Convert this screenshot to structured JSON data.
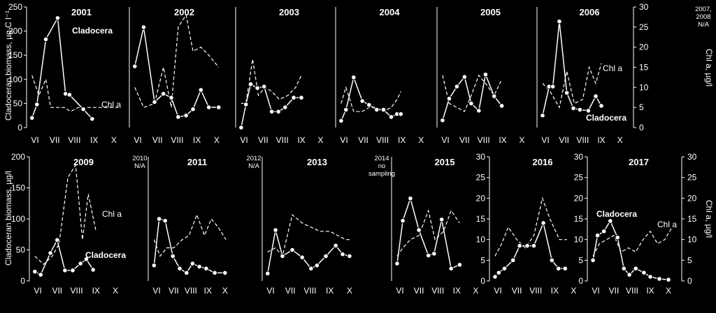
{
  "figure": {
    "background": "#000000",
    "ink": "#ffffff",
    "top_left_ylabel": "Cladoceran biomass, µg C l⁻¹",
    "bottom_left_ylabel": "Cladoceran biomass, µg/l",
    "right_ylabel": "Chl a, µg/l",
    "months": [
      "VI",
      "VII",
      "VIII",
      "IX",
      "X"
    ]
  },
  "chart_data": [
    {
      "type": "line",
      "title": "2001",
      "row": 0,
      "ylim": [
        0,
        250
      ],
      "chl_ylim": [
        0,
        30
      ],
      "series": [
        {
          "name": "Cladocera",
          "x": [
            5.85,
            6.1,
            6.55,
            7.15,
            7.55,
            7.75,
            8.45,
            8.9
          ],
          "y": [
            20,
            48,
            183,
            227,
            70,
            68,
            38,
            18
          ]
        },
        {
          "name": "Chl a",
          "x": [
            5.85,
            6.2,
            6.55,
            6.8,
            7.15,
            7.5,
            7.8,
            8.2,
            8.6,
            9.0,
            9.5,
            10.0,
            10.2
          ],
          "y": [
            13,
            8,
            12,
            5,
            5,
            5,
            4,
            5,
            5,
            5,
            5,
            5,
            5
          ]
        }
      ],
      "annotations": [
        {
          "text": "Cladocera"
        },
        {
          "text": "Chl a"
        }
      ]
    },
    {
      "type": "line",
      "title": "2002",
      "row": 0,
      "ylim": [
        0,
        250
      ],
      "chl_ylim": [
        0,
        30
      ],
      "series": [
        {
          "name": "Cladocera",
          "x": [
            5.85,
            6.3,
            6.85,
            7.3,
            7.7,
            8.05,
            8.45,
            8.8,
            9.2,
            9.6,
            10.1
          ],
          "y": [
            127,
            208,
            53,
            70,
            62,
            22,
            25,
            38,
            78,
            42,
            42
          ]
        },
        {
          "name": "Chl a",
          "x": [
            5.85,
            6.3,
            6.85,
            7.3,
            7.7,
            8.05,
            8.45,
            8.8,
            9.2,
            9.6,
            10.1
          ],
          "y": [
            10,
            5,
            6,
            15,
            5,
            25,
            28,
            19,
            20,
            18,
            15
          ]
        }
      ]
    },
    {
      "type": "line",
      "title": "2003",
      "row": 0,
      "ylim": [
        0,
        250
      ],
      "chl_ylim": [
        0,
        30
      ],
      "series": [
        {
          "name": "Cladocera",
          "x": [
            5.85,
            6.1,
            6.35,
            6.7,
            7.05,
            7.45,
            7.8,
            8.15,
            8.6,
            9.0
          ],
          "y": [
            0,
            48,
            90,
            82,
            85,
            33,
            33,
            42,
            62,
            62
          ]
        },
        {
          "name": "Chl a",
          "x": [
            5.85,
            6.1,
            6.45,
            6.75,
            7.1,
            7.45,
            7.85,
            8.3,
            8.7,
            9.0
          ],
          "y": [
            6,
            6,
            17,
            8,
            10,
            9,
            7,
            8,
            10,
            13
          ]
        }
      ]
    },
    {
      "type": "line",
      "title": "2004",
      "row": 0,
      "ylim": [
        0,
        250
      ],
      "chl_ylim": [
        0,
        30
      ],
      "series": [
        {
          "name": "Cladocera",
          "x": [
            5.85,
            6.1,
            6.5,
            6.95,
            7.3,
            7.7,
            8.05,
            8.45,
            8.75,
            8.95
          ],
          "y": [
            14,
            37,
            104,
            55,
            47,
            37,
            37,
            22,
            28,
            28
          ]
        },
        {
          "name": "Chl a",
          "x": [
            5.85,
            6.1,
            6.5,
            6.95,
            7.3,
            7.7,
            8.05,
            8.45,
            8.75,
            8.95
          ],
          "y": [
            6,
            10,
            4,
            4,
            5,
            5,
            4,
            5,
            7,
            9
          ]
        }
      ]
    },
    {
      "type": "line",
      "title": "2005",
      "row": 0,
      "ylim": [
        0,
        250
      ],
      "chl_ylim": [
        0,
        30
      ],
      "series": [
        {
          "name": "Cladocera",
          "x": [
            5.85,
            6.2,
            6.6,
            7.0,
            7.35,
            7.75,
            8.1,
            8.55,
            8.95
          ],
          "y": [
            15,
            60,
            85,
            105,
            50,
            35,
            110,
            65,
            45
          ]
        },
        {
          "name": "Chl a",
          "x": [
            5.85,
            6.2,
            6.6,
            7.0,
            7.35,
            7.75,
            8.1,
            8.55,
            8.95
          ],
          "y": [
            13,
            6,
            5,
            4,
            8,
            13,
            11,
            8,
            12
          ]
        }
      ]
    },
    {
      "type": "line",
      "title": "2006",
      "row": 0,
      "ylim": [
        0,
        250
      ],
      "chl_ylim": [
        0,
        30
      ],
      "series": [
        {
          "name": "Cladocera",
          "x": [
            5.85,
            6.2,
            6.4,
            6.75,
            7.15,
            7.5,
            7.85,
            8.3,
            8.7,
            9.0
          ],
          "y": [
            25,
            85,
            85,
            220,
            72,
            40,
            37,
            35,
            65,
            45
          ]
        },
        {
          "name": "Chl a",
          "x": [
            5.85,
            6.25,
            6.75,
            7.15,
            7.55,
            8.0,
            8.35,
            8.7,
            9.0
          ],
          "y": [
            11,
            9,
            5,
            14,
            6,
            7,
            15,
            11,
            16
          ]
        }
      ],
      "annotations": [
        {
          "text": "Chl a"
        },
        {
          "text": "Cladocera"
        }
      ]
    },
    {
      "type": "line",
      "title": "2009",
      "row": 1,
      "ylim": [
        0,
        200
      ],
      "chl_ylim": [
        0,
        30
      ],
      "series": [
        {
          "name": "Cladocera",
          "x": [
            5.85,
            6.15,
            6.65,
            7.0,
            7.4,
            7.8,
            8.2,
            8.5,
            8.85
          ],
          "y": [
            15,
            10,
            45,
            66,
            17,
            17,
            28,
            35,
            18
          ]
        },
        {
          "name": "Chl a",
          "x": [
            5.85,
            6.3,
            6.75,
            7.1,
            7.55,
            7.95,
            8.3,
            8.6,
            9.0
          ],
          "y": [
            6,
            4,
            6,
            9,
            25,
            28,
            10,
            21,
            12
          ]
        }
      ],
      "annotations": [
        {
          "text": "Chl a"
        },
        {
          "text": "Cladocera"
        }
      ]
    },
    {
      "type": "line",
      "title": "2011",
      "row": 1,
      "ylim": [
        0,
        200
      ],
      "chl_ylim": [
        0,
        30
      ],
      "series": [
        {
          "name": "Cladocera",
          "x": [
            5.85,
            6.15,
            6.5,
            6.95,
            7.35,
            7.75,
            8.1,
            8.5,
            8.9,
            9.4,
            10.0
          ],
          "y": [
            25,
            100,
            97,
            40,
            20,
            13,
            28,
            23,
            20,
            13,
            13
          ]
        },
        {
          "name": "Chl a",
          "x": [
            5.85,
            6.2,
            6.6,
            7.0,
            7.5,
            7.9,
            8.35,
            8.8,
            9.2,
            9.6,
            10.05
          ],
          "y": [
            10,
            6,
            8,
            8,
            10,
            11,
            16,
            11,
            15,
            13,
            10
          ]
        }
      ]
    },
    {
      "type": "line",
      "title": "2013",
      "row": 1,
      "ylim": [
        0,
        200
      ],
      "chl_ylim": [
        0,
        30
      ],
      "series": [
        {
          "name": "Cladocera",
          "x": [
            5.85,
            6.25,
            6.6,
            7.1,
            7.6,
            8.05,
            8.35,
            8.8,
            9.3,
            9.65,
            10.0
          ],
          "y": [
            12,
            82,
            40,
            50,
            38,
            20,
            25,
            40,
            57,
            43,
            40
          ]
        },
        {
          "name": "Chl a",
          "x": [
            5.85,
            6.25,
            6.6,
            7.1,
            7.6,
            8.05,
            8.5,
            9.0,
            9.4,
            9.8,
            10.0
          ],
          "y": [
            7,
            8,
            6,
            16,
            14,
            13,
            12,
            12,
            11,
            10,
            10
          ]
        }
      ]
    },
    {
      "type": "line",
      "title": "2015",
      "row": 1,
      "ylim": [
        0,
        200
      ],
      "chl_ylim": [
        0,
        30
      ],
      "series": [
        {
          "name": "Cladocera",
          "x": [
            5.85,
            6.15,
            6.55,
            7.0,
            7.5,
            7.8,
            8.2,
            8.7,
            9.15
          ],
          "y": [
            28,
            97,
            133,
            82,
            41,
            44,
            99,
            20,
            26
          ]
        },
        {
          "name": "Chl a",
          "x": [
            5.85,
            6.15,
            6.55,
            7.0,
            7.5,
            7.85,
            8.3,
            8.7,
            9.15
          ],
          "y": [
            6,
            8,
            10,
            11,
            17,
            10,
            12,
            17,
            14
          ]
        }
      ]
    },
    {
      "type": "line",
      "title": "2016",
      "row": 1,
      "ylim": [
        0,
        30
      ],
      "chl_ylim": [
        0,
        30
      ],
      "series": [
        {
          "name": "Cladocera",
          "x": [
            5.85,
            6.05,
            6.35,
            6.8,
            7.15,
            7.55,
            7.9,
            8.4,
            8.85,
            9.2,
            9.55
          ],
          "y": [
            1,
            2,
            3,
            5,
            8.5,
            8.5,
            8.5,
            14,
            5,
            3,
            3
          ]
        },
        {
          "name": "Chl a",
          "x": [
            5.85,
            6.2,
            6.55,
            7.0,
            7.45,
            7.9,
            8.35,
            8.75,
            9.25,
            9.65
          ],
          "y": [
            6,
            9,
            13,
            10,
            8,
            11,
            20,
            15,
            10,
            10
          ]
        }
      ]
    },
    {
      "type": "line",
      "title": "2017",
      "row": 1,
      "ylim": [
        0,
        30
      ],
      "chl_ylim": [
        0,
        30
      ],
      "series": [
        {
          "name": "Cladocera",
          "x": [
            5.85,
            6.1,
            6.45,
            6.8,
            7.2,
            7.55,
            7.85,
            8.2,
            8.65,
            9.0,
            9.5,
            10.0
          ],
          "y": [
            5,
            11,
            12,
            14.5,
            10.5,
            3,
            1.5,
            3,
            2,
            1,
            0.5,
            0.3
          ]
        },
        {
          "name": "Chl a",
          "x": [
            5.85,
            6.2,
            6.6,
            7.0,
            7.4,
            7.8,
            8.2,
            8.6,
            9.0,
            9.4,
            9.8,
            10.2
          ],
          "y": [
            6,
            9,
            10,
            11,
            7,
            8,
            7,
            10,
            12,
            9,
            10,
            13
          ]
        }
      ],
      "annotations": [
        {
          "text": "Cladocera"
        },
        {
          "text": "Chl a"
        }
      ]
    }
  ],
  "notes": [
    {
      "text": "2007,\n2008\nN/A"
    },
    {
      "text": "2010\nN/A"
    },
    {
      "text": "2012\nN/A"
    },
    {
      "text": "2014\nno\nsampling"
    }
  ]
}
